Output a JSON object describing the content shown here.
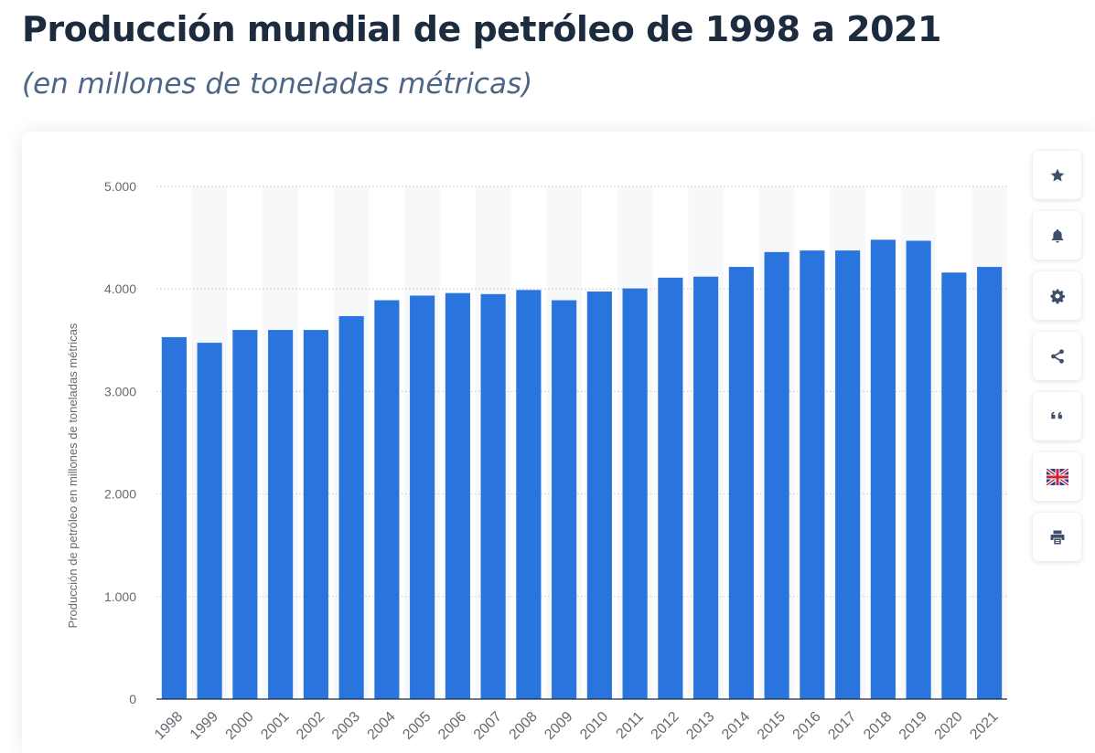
{
  "header": {
    "title": "Producción mundial de petróleo de 1998 a 2021",
    "subtitle": "(en millones de toneladas métricas)"
  },
  "toolbar": {
    "buttons": [
      {
        "icon": "star-icon"
      },
      {
        "icon": "bell-icon"
      },
      {
        "icon": "gear-icon"
      },
      {
        "icon": "share-icon"
      },
      {
        "icon": "quote-icon"
      },
      {
        "icon": "uk-flag-icon"
      },
      {
        "icon": "print-icon"
      }
    ]
  },
  "colors": {
    "bar": "#2a74de",
    "grid": "#c6c9cd",
    "band": "#f7f8f9",
    "axis": "#1d2b3f",
    "tick_text": "#646a70",
    "icon": "#3e5069"
  },
  "chart_data": {
    "type": "bar",
    "categories": [
      "1998",
      "1999",
      "2000",
      "2001",
      "2002",
      "2003",
      "2004",
      "2005",
      "2006",
      "2007",
      "2008",
      "2009",
      "2010",
      "2011",
      "2012",
      "2013",
      "2014",
      "2015",
      "2016",
      "2017",
      "2018",
      "2019",
      "2020",
      "2021"
    ],
    "values": [
      3530,
      3475,
      3600,
      3600,
      3600,
      3735,
      3890,
      3935,
      3960,
      3950,
      3990,
      3890,
      3975,
      4005,
      4110,
      4120,
      4215,
      4360,
      4375,
      4375,
      4480,
      4470,
      4160,
      4215
    ],
    "ylabel": "Producción de petróleo en millones de toneladas métricas",
    "ylim": [
      0,
      5000
    ],
    "yticks": [
      0,
      1000,
      2000,
      3000,
      4000,
      5000
    ],
    "ytick_labels": [
      "0",
      "1.000",
      "2.000",
      "3.000",
      "4.000",
      "5.000"
    ],
    "grid": true,
    "legend": "none"
  }
}
